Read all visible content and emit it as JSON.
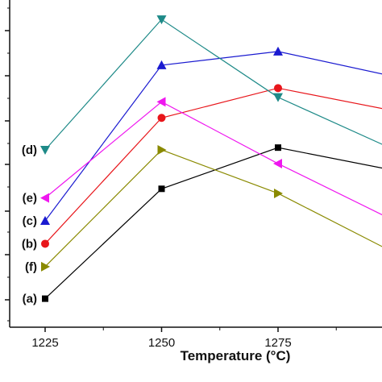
{
  "chart_data": {
    "type": "line",
    "xlabel": "Temperature (°C)",
    "ylabel": "",
    "x": [
      1225,
      1250,
      1275,
      1300
    ],
    "x_ticks": [
      "1225",
      "1250",
      "1275"
    ],
    "xlim": [
      1219,
      1300
    ],
    "ylim": [
      0,
      13
    ],
    "legend": "inline-left",
    "grid": false,
    "series": [
      {
        "name": "(a)",
        "color": "#000000",
        "marker": "square",
        "values": [
          1.0,
          5.8,
          7.6,
          6.6
        ]
      },
      {
        "name": "(b)",
        "color": "#e8161b",
        "marker": "circle",
        "values": [
          3.4,
          8.9,
          10.2,
          9.2
        ]
      },
      {
        "name": "(c)",
        "color": "#1a1ad0",
        "marker": "triangle-up",
        "values": [
          4.4,
          11.2,
          11.8,
          10.7
        ]
      },
      {
        "name": "(d)",
        "color": "#1e8a88",
        "marker": "triangle-down",
        "values": [
          7.5,
          13.2,
          9.8,
          7.5
        ]
      },
      {
        "name": "(e)",
        "color": "#ef17ef",
        "marker": "triangle-left",
        "values": [
          5.4,
          9.6,
          6.9,
          4.4
        ]
      },
      {
        "name": "(f)",
        "color": "#8a8a00",
        "marker": "triangle-right",
        "values": [
          2.4,
          7.5,
          5.6,
          3.0
        ]
      }
    ]
  }
}
